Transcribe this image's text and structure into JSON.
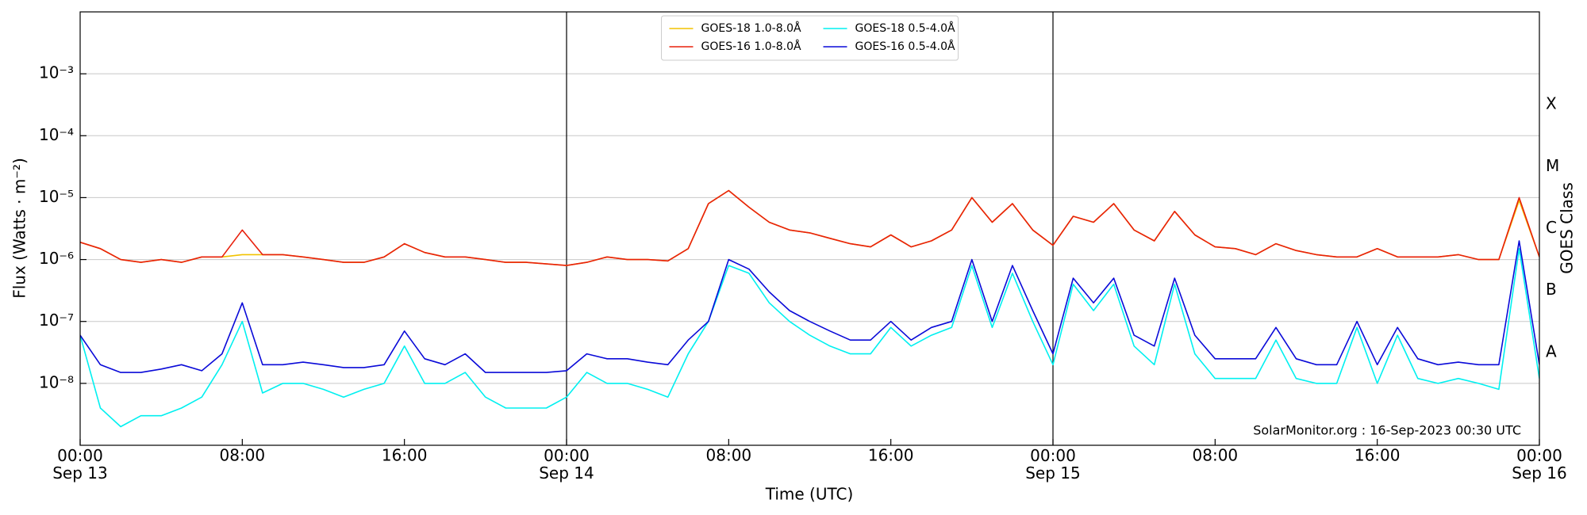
{
  "chart_data": {
    "type": "line",
    "yscale": "log",
    "ylabel": "Flux (Watts · m⁻²)",
    "xlabel": "Time (UTC)",
    "y2label": "GOES Class",
    "annotation": "SolarMonitor.org : 16-Sep-2023 00:30 UTC",
    "legend": "upper center",
    "grid": true,
    "xlim": [
      0,
      72
    ],
    "xticks": [
      {
        "value": 0,
        "label": "00:00\nSep 13"
      },
      {
        "value": 8,
        "label": "08:00"
      },
      {
        "value": 16,
        "label": "16:00"
      },
      {
        "value": 24,
        "label": "00:00\nSep 14"
      },
      {
        "value": 32,
        "label": "08:00"
      },
      {
        "value": 40,
        "label": "16:00"
      },
      {
        "value": 48,
        "label": "00:00\nSep 15"
      },
      {
        "value": 56,
        "label": "08:00"
      },
      {
        "value": 64,
        "label": "16:00"
      },
      {
        "value": 72,
        "label": "00:00\nSep 16"
      }
    ],
    "day_lines": [
      24,
      48
    ],
    "ylim": [
      1e-09,
      0.01
    ],
    "yticks": [
      {
        "value": 1e-08,
        "label": "10⁻⁸"
      },
      {
        "value": 1e-07,
        "label": "10⁻⁷"
      },
      {
        "value": 1e-06,
        "label": "10⁻⁶"
      },
      {
        "value": 1e-05,
        "label": "10⁻⁵"
      },
      {
        "value": 0.0001,
        "label": "10⁻⁴"
      },
      {
        "value": 0.001,
        "label": "10⁻³"
      }
    ],
    "y2lim": [
      1e-09,
      0.01
    ],
    "y2ticks": [
      {
        "value": 3.16e-08,
        "label": "A"
      },
      {
        "value": 3.16e-07,
        "label": "B"
      },
      {
        "value": 3.16e-06,
        "label": "C"
      },
      {
        "value": 3.16e-05,
        "label": "M"
      },
      {
        "value": 0.000316,
        "label": "X"
      }
    ],
    "x": [
      0,
      1,
      2,
      3,
      4,
      5,
      6,
      7,
      8,
      9,
      10,
      11,
      12,
      13,
      14,
      15,
      16,
      17,
      18,
      19,
      20,
      21,
      22,
      23,
      24,
      25,
      26,
      27,
      28,
      29,
      30,
      31,
      32,
      33,
      34,
      35,
      36,
      37,
      38,
      39,
      40,
      41,
      42,
      43,
      44,
      45,
      46,
      47,
      48,
      49,
      50,
      51,
      52,
      53,
      54,
      55,
      56,
      57,
      58,
      59,
      60,
      61,
      62,
      63,
      64,
      65,
      66,
      67,
      68,
      69,
      70,
      71,
      72
    ],
    "series": [
      {
        "name": "GOES-18 1.0-8.0Å",
        "color": "#f2c200",
        "values": [
          1.9e-06,
          1.5e-06,
          1e-06,
          9e-07,
          1e-06,
          9e-07,
          1.1e-06,
          1.1e-06,
          1.2e-06,
          1.2e-06,
          1.2e-06,
          1.1e-06,
          1e-06,
          9e-07,
          9e-07,
          1.1e-06,
          1.8e-06,
          1.3e-06,
          1.1e-06,
          1.1e-06,
          1e-06,
          9e-07,
          9e-07,
          8.5e-07,
          8e-07,
          9e-07,
          1.1e-06,
          1e-06,
          1e-06,
          9.5e-07,
          1.5e-06,
          8e-06,
          1.3e-05,
          7e-06,
          4e-06,
          3e-06,
          2.7e-06,
          2.2e-06,
          1.8e-06,
          1.6e-06,
          2.5e-06,
          1.6e-06,
          2e-06,
          3e-06,
          1e-05,
          4e-06,
          8e-06,
          3e-06,
          1.7e-06,
          5e-06,
          4e-06,
          8e-06,
          3e-06,
          2e-06,
          6e-06,
          2.5e-06,
          1.6e-06,
          1.5e-06,
          1.2e-06,
          1.8e-06,
          1.4e-06,
          1.2e-06,
          1.1e-06,
          1.1e-06,
          1.5e-06,
          1.1e-06,
          1.1e-06,
          1.1e-06,
          1.2e-06,
          1e-06,
          1e-06,
          9e-06,
          1.1e-06
        ]
      },
      {
        "name": "GOES-16 1.0-8.0Å",
        "color": "#e8200c",
        "values": [
          1.9e-06,
          1.5e-06,
          1e-06,
          9e-07,
          1e-06,
          9e-07,
          1.1e-06,
          1.1e-06,
          3e-06,
          1.2e-06,
          1.2e-06,
          1.1e-06,
          1e-06,
          9e-07,
          9e-07,
          1.1e-06,
          1.8e-06,
          1.3e-06,
          1.1e-06,
          1.1e-06,
          1e-06,
          9e-07,
          9e-07,
          8.5e-07,
          8e-07,
          9e-07,
          1.1e-06,
          1e-06,
          1e-06,
          9.5e-07,
          1.5e-06,
          8e-06,
          1.3e-05,
          7e-06,
          4e-06,
          3e-06,
          2.7e-06,
          2.2e-06,
          1.8e-06,
          1.6e-06,
          2.5e-06,
          1.6e-06,
          2e-06,
          3e-06,
          1e-05,
          4e-06,
          8e-06,
          3e-06,
          1.7e-06,
          5e-06,
          4e-06,
          8e-06,
          3e-06,
          2e-06,
          6e-06,
          2.5e-06,
          1.6e-06,
          1.5e-06,
          1.2e-06,
          1.8e-06,
          1.4e-06,
          1.2e-06,
          1.1e-06,
          1.1e-06,
          1.5e-06,
          1.1e-06,
          1.1e-06,
          1.1e-06,
          1.2e-06,
          1e-06,
          1e-06,
          1e-05,
          1.1e-06
        ]
      },
      {
        "name": "GOES-18 0.5-4.0Å",
        "color": "#00f0f0",
        "values": [
          6e-08,
          4e-09,
          2e-09,
          3e-09,
          3e-09,
          4e-09,
          6e-09,
          2e-08,
          1e-07,
          7e-09,
          1e-08,
          1e-08,
          8e-09,
          6e-09,
          8e-09,
          1e-08,
          4e-08,
          1e-08,
          1e-08,
          1.5e-08,
          6e-09,
          4e-09,
          4e-09,
          4e-09,
          6e-09,
          1.5e-08,
          1e-08,
          1e-08,
          8e-09,
          6e-09,
          3e-08,
          1e-07,
          8e-07,
          6e-07,
          2e-07,
          1e-07,
          6e-08,
          4e-08,
          3e-08,
          3e-08,
          8e-08,
          4e-08,
          6e-08,
          8e-08,
          8e-07,
          8e-08,
          6e-07,
          1e-07,
          2e-08,
          4e-07,
          1.5e-07,
          4e-07,
          4e-08,
          2e-08,
          4e-07,
          3e-08,
          1.2e-08,
          1.2e-08,
          1.2e-08,
          5e-08,
          1.2e-08,
          1e-08,
          1e-08,
          8e-08,
          1e-08,
          6e-08,
          1.2e-08,
          1e-08,
          1.2e-08,
          1e-08,
          8e-09,
          1.5e-06,
          1.2e-08
        ]
      },
      {
        "name": "GOES-16 0.5-4.0Å",
        "color": "#0a0ad8",
        "values": [
          6e-08,
          2e-08,
          1.5e-08,
          1.5e-08,
          1.7e-08,
          2e-08,
          1.6e-08,
          3e-08,
          2e-07,
          2e-08,
          2e-08,
          2.2e-08,
          2e-08,
          1.8e-08,
          1.8e-08,
          2e-08,
          7e-08,
          2.5e-08,
          2e-08,
          3e-08,
          1.5e-08,
          1.5e-08,
          1.5e-08,
          1.5e-08,
          1.6e-08,
          3e-08,
          2.5e-08,
          2.5e-08,
          2.2e-08,
          2e-08,
          5e-08,
          1e-07,
          1e-06,
          7e-07,
          3e-07,
          1.5e-07,
          1e-07,
          7e-08,
          5e-08,
          5e-08,
          1e-07,
          5e-08,
          8e-08,
          1e-07,
          1e-06,
          1e-07,
          8e-07,
          1.5e-07,
          3e-08,
          5e-07,
          2e-07,
          5e-07,
          6e-08,
          4e-08,
          5e-07,
          6e-08,
          2.5e-08,
          2.5e-08,
          2.5e-08,
          8e-08,
          2.5e-08,
          2e-08,
          2e-08,
          1e-07,
          2e-08,
          8e-08,
          2.5e-08,
          2e-08,
          2.2e-08,
          2e-08,
          2e-08,
          2e-06,
          2e-08
        ]
      }
    ]
  }
}
